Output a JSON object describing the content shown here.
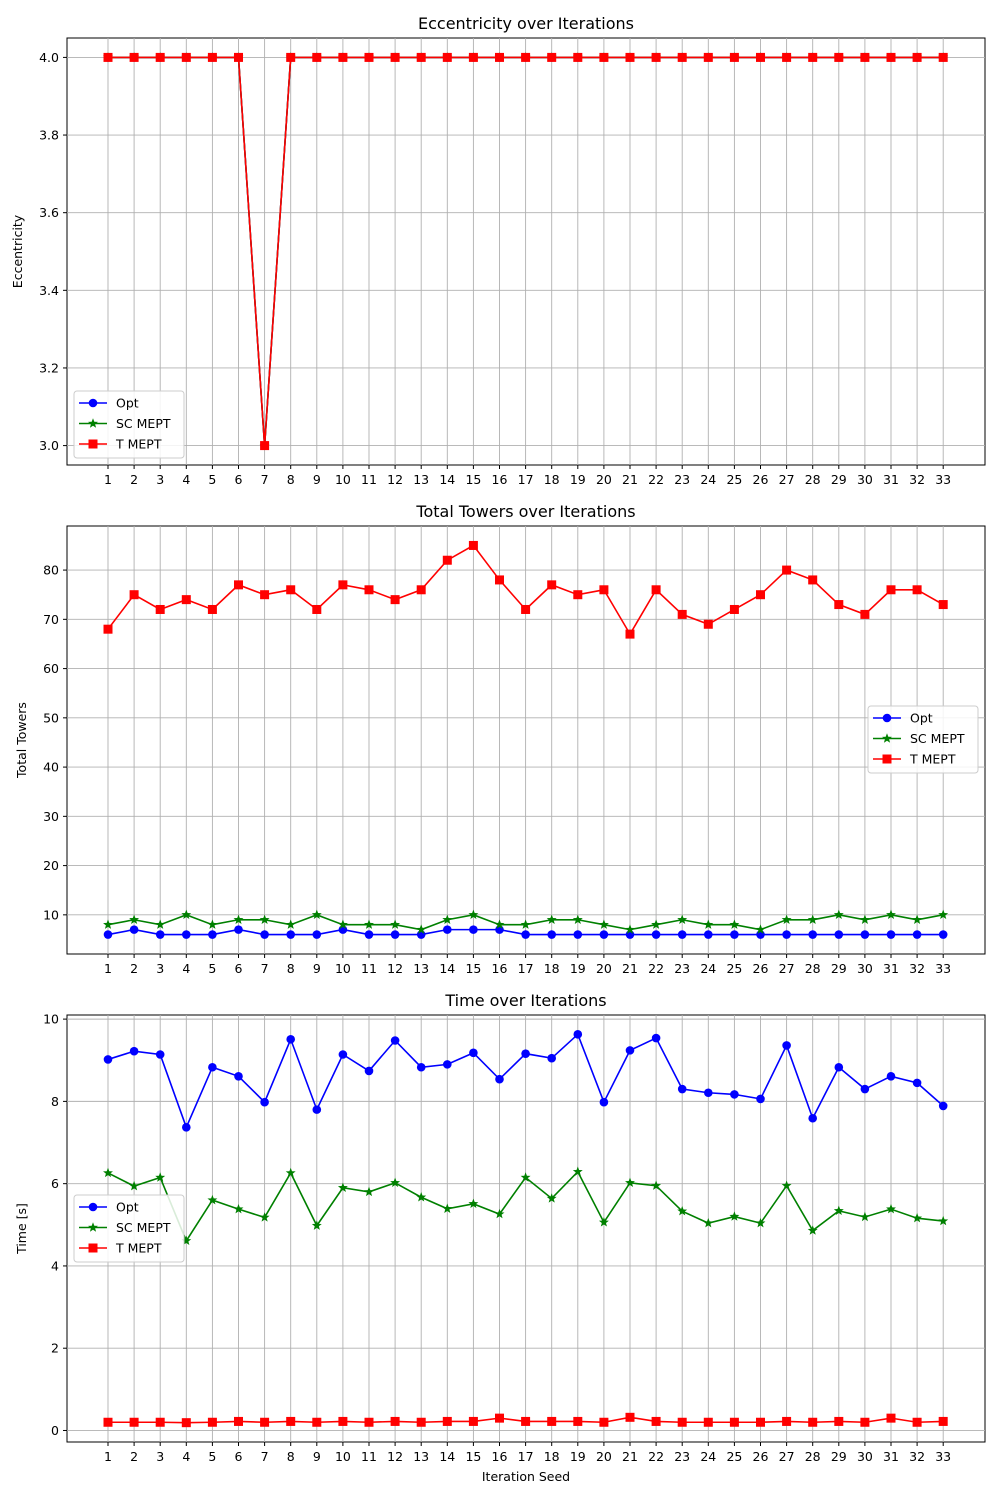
{
  "colors": {
    "opt": "#0000ff",
    "sc": "#008000",
    "t": "#ff0000",
    "grid": "#b0b0b0"
  },
  "chart_data": [
    {
      "type": "line",
      "title": "Eccentricity over Iterations",
      "xlabel": "",
      "ylabel": "Eccentricity",
      "categories": [
        "1",
        "2",
        "3",
        "4",
        "5",
        "6",
        "7",
        "8",
        "9",
        "10",
        "11",
        "12",
        "13",
        "14",
        "15",
        "16",
        "17",
        "18",
        "19",
        "20",
        "21",
        "22",
        "23",
        "24",
        "25",
        "26",
        "27",
        "28",
        "29",
        "30",
        "31",
        "32",
        "33"
      ],
      "ylim": [
        2.95,
        4.05
      ],
      "yticks": [
        3.0,
        3.2,
        3.4,
        3.6,
        3.8,
        4.0
      ],
      "ytick_labels": [
        "3.0",
        "3.2",
        "3.4",
        "3.6",
        "3.8",
        "4.0"
      ],
      "grid": true,
      "legend_position": "lower-left",
      "series": [
        {
          "name": "Opt",
          "marker": "circle",
          "color": "#0000ff",
          "values": [
            4,
            4,
            4,
            4,
            4,
            4,
            3,
            4,
            4,
            4,
            4,
            4,
            4,
            4,
            4,
            4,
            4,
            4,
            4,
            4,
            4,
            4,
            4,
            4,
            4,
            4,
            4,
            4,
            4,
            4,
            4,
            4,
            4
          ]
        },
        {
          "name": "SC MEPT",
          "marker": "star",
          "color": "#008000",
          "values": [
            4,
            4,
            4,
            4,
            4,
            4,
            3,
            4,
            4,
            4,
            4,
            4,
            4,
            4,
            4,
            4,
            4,
            4,
            4,
            4,
            4,
            4,
            4,
            4,
            4,
            4,
            4,
            4,
            4,
            4,
            4,
            4,
            4
          ]
        },
        {
          "name": "T MEPT",
          "marker": "square",
          "color": "#ff0000",
          "values": [
            4,
            4,
            4,
            4,
            4,
            4,
            3,
            4,
            4,
            4,
            4,
            4,
            4,
            4,
            4,
            4,
            4,
            4,
            4,
            4,
            4,
            4,
            4,
            4,
            4,
            4,
            4,
            4,
            4,
            4,
            4,
            4,
            4
          ]
        }
      ]
    },
    {
      "type": "line",
      "title": "Total Towers over Iterations",
      "xlabel": "",
      "ylabel": "Total Towers",
      "categories": [
        "1",
        "2",
        "3",
        "4",
        "5",
        "6",
        "7",
        "8",
        "9",
        "10",
        "11",
        "12",
        "13",
        "14",
        "15",
        "16",
        "17",
        "18",
        "19",
        "20",
        "21",
        "22",
        "23",
        "24",
        "25",
        "26",
        "27",
        "28",
        "29",
        "30",
        "31",
        "32",
        "33"
      ],
      "ylim": [
        2.05,
        88.95
      ],
      "yticks": [
        10,
        20,
        30,
        40,
        50,
        60,
        70,
        80
      ],
      "ytick_labels": [
        "10",
        "20",
        "30",
        "40",
        "50",
        "60",
        "70",
        "80"
      ],
      "grid": true,
      "legend_position": "center-right",
      "series": [
        {
          "name": "Opt",
          "marker": "circle",
          "color": "#0000ff",
          "values": [
            6,
            7,
            6,
            6,
            6,
            7,
            6,
            6,
            6,
            7,
            6,
            6,
            6,
            7,
            7,
            7,
            6,
            6,
            6,
            6,
            6,
            6,
            6,
            6,
            6,
            6,
            6,
            6,
            6,
            6,
            6,
            6,
            6
          ]
        },
        {
          "name": "SC MEPT",
          "marker": "star",
          "color": "#008000",
          "values": [
            8,
            9,
            8,
            10,
            8,
            9,
            9,
            8,
            10,
            8,
            8,
            8,
            7,
            9,
            10,
            8,
            8,
            9,
            9,
            8,
            7,
            8,
            9,
            8,
            8,
            7,
            9,
            9,
            10,
            9,
            10,
            9,
            10
          ]
        },
        {
          "name": "T MEPT",
          "marker": "square",
          "color": "#ff0000",
          "values": [
            68,
            75,
            72,
            74,
            72,
            77,
            75,
            76,
            72,
            77,
            76,
            74,
            76,
            82,
            85,
            78,
            72,
            77,
            75,
            76,
            67,
            76,
            71,
            69,
            72,
            75,
            80,
            78,
            73,
            71,
            76,
            76,
            73
          ]
        }
      ]
    },
    {
      "type": "line",
      "title": "Time over Iterations",
      "xlabel": "Iteration Seed",
      "ylabel": "Time [s]",
      "categories": [
        "1",
        "2",
        "3",
        "4",
        "5",
        "6",
        "7",
        "8",
        "9",
        "10",
        "11",
        "12",
        "13",
        "14",
        "15",
        "16",
        "17",
        "18",
        "19",
        "20",
        "21",
        "22",
        "23",
        "24",
        "25",
        "26",
        "27",
        "28",
        "29",
        "30",
        "31",
        "32",
        "33"
      ],
      "ylim": [
        -0.28,
        10.1
      ],
      "yticks": [
        0,
        2,
        4,
        6,
        8,
        10
      ],
      "ytick_labels": [
        "0",
        "2",
        "4",
        "6",
        "8",
        "10"
      ],
      "grid": true,
      "legend_position": "center-left",
      "series": [
        {
          "name": "Opt",
          "marker": "circle",
          "color": "#0000ff",
          "values": [
            9.02,
            9.22,
            9.14,
            7.37,
            8.83,
            8.61,
            7.98,
            9.51,
            7.8,
            9.14,
            8.74,
            9.48,
            8.83,
            8.9,
            9.18,
            8.54,
            9.16,
            9.05,
            9.63,
            7.98,
            9.24,
            9.54,
            8.3,
            8.21,
            8.17,
            8.06,
            9.36,
            7.59,
            8.83,
            8.3,
            8.61,
            8.45,
            7.89
          ]
        },
        {
          "name": "SC MEPT",
          "marker": "star",
          "color": "#008000",
          "values": [
            6.26,
            5.94,
            6.15,
            4.61,
            5.6,
            5.38,
            5.18,
            6.26,
            4.98,
            5.9,
            5.8,
            6.02,
            5.67,
            5.39,
            5.51,
            5.26,
            6.15,
            5.64,
            6.29,
            5.06,
            6.02,
            5.95,
            5.33,
            5.04,
            5.2,
            5.04,
            5.95,
            4.86,
            5.34,
            5.19,
            5.38,
            5.16,
            5.09
          ]
        },
        {
          "name": "T MEPT",
          "marker": "square",
          "color": "#ff0000",
          "values": [
            0.2,
            0.2,
            0.2,
            0.19,
            0.2,
            0.22,
            0.2,
            0.22,
            0.2,
            0.22,
            0.2,
            0.22,
            0.2,
            0.22,
            0.22,
            0.3,
            0.22,
            0.22,
            0.22,
            0.2,
            0.32,
            0.22,
            0.2,
            0.2,
            0.2,
            0.2,
            0.22,
            0.2,
            0.22,
            0.2,
            0.3,
            0.2,
            0.22
          ]
        }
      ]
    }
  ]
}
